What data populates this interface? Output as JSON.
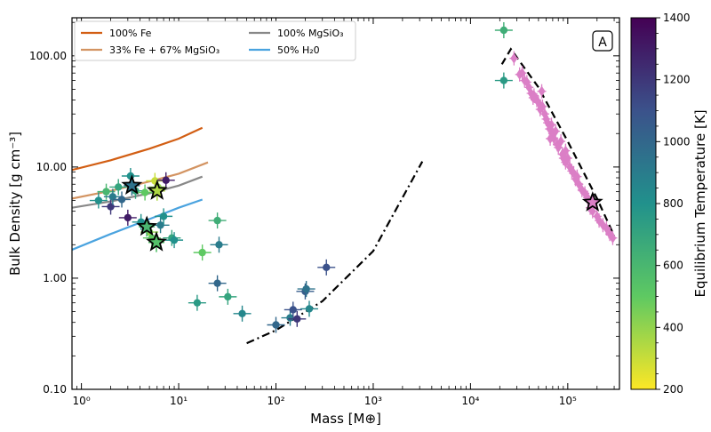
{
  "chart_data": {
    "type": "scatter",
    "title": "",
    "panel_label": "A",
    "xlabel": "Mass [M⊕]",
    "ylabel": "Bulk Density [g cm⁻³]",
    "xscale": "log",
    "yscale": "log",
    "xlim": [
      0.8,
      340000
    ],
    "ylim": [
      0.1,
      220
    ],
    "xticks": [
      {
        "value": 1,
        "label": "10⁰"
      },
      {
        "value": 10,
        "label": "10¹"
      },
      {
        "value": 100,
        "label": "10²"
      },
      {
        "value": 1000,
        "label": "10³"
      },
      {
        "value": 10000,
        "label": "10⁴"
      },
      {
        "value": 100000,
        "label": "10⁵"
      }
    ],
    "yticks": [
      {
        "value": 0.1,
        "label": "0.10"
      },
      {
        "value": 1,
        "label": "1.00"
      },
      {
        "value": 10,
        "label": "10.00"
      },
      {
        "value": 100,
        "label": "100.00"
      }
    ],
    "grid": false,
    "legend": {
      "placement": "top-left",
      "entries": [
        {
          "label": "100% Fe",
          "color": "#d25e13"
        },
        {
          "label": "33% Fe + 67% MgSiO₃",
          "color": "#d39462"
        },
        {
          "label": "100% MgSiO₃",
          "color": "#888888"
        },
        {
          "label": "50% H₂0",
          "color": "#4aa3df"
        }
      ]
    },
    "colorbar": {
      "label": "Equilibrium Temperature [K]",
      "min": 200,
      "max": 1400,
      "ticks": [
        "200",
        "400",
        "600",
        "800",
        "1000",
        "1200",
        "1400"
      ],
      "colormap": "viridis_r"
    },
    "composition_curves": [
      {
        "name": "100% Fe",
        "color": "#d25e13",
        "x": [
          0.8,
          2,
          5,
          10,
          17.5
        ],
        "y": [
          9.4,
          11.5,
          14.6,
          18.0,
          22.5
        ]
      },
      {
        "name": "33% Fe + 67% MgSiO₃",
        "color": "#d39462",
        "x": [
          0.8,
          2,
          5,
          10,
          20
        ],
        "y": [
          5.2,
          6.1,
          7.4,
          8.7,
          11.0
        ]
      },
      {
        "name": "100% MgSiO₃",
        "color": "#888888",
        "x": [
          0.8,
          2,
          5,
          10,
          17.5
        ],
        "y": [
          4.3,
          4.9,
          5.8,
          6.8,
          8.2
        ]
      },
      {
        "name": "50% H₂0",
        "color": "#4aa3df",
        "x": [
          0.8,
          2,
          5,
          10,
          17.5
        ],
        "y": [
          1.8,
          2.5,
          3.4,
          4.3,
          5.1
        ]
      }
    ],
    "model_lines": [
      {
        "style": "dash-dot",
        "color": "#000000",
        "x": [
          50,
          100,
          300,
          1000,
          3200
        ],
        "y": [
          0.26,
          0.34,
          0.62,
          1.75,
          11.2
        ]
      },
      {
        "style": "dashed",
        "color": "#000000",
        "x": [
          21000,
          26000,
          50000,
          100000,
          200000,
          300000
        ],
        "y": [
          84,
          115,
          52,
          17,
          5.2,
          2.4
        ]
      }
    ],
    "planets": [
      {
        "x": 1.5,
        "y": 5.0,
        "t": 800
      },
      {
        "x": 1.8,
        "y": 6.0,
        "t": 600
      },
      {
        "x": 2.0,
        "y": 4.4,
        "t": 1200
      },
      {
        "x": 2.1,
        "y": 5.4,
        "t": 900
      },
      {
        "x": 2.4,
        "y": 6.6,
        "t": 700
      },
      {
        "x": 2.6,
        "y": 5.1,
        "t": 1000
      },
      {
        "x": 3.0,
        "y": 3.5,
        "t": 1300
      },
      {
        "x": 3.2,
        "y": 8.3,
        "t": 800
      },
      {
        "x": 3.6,
        "y": 6.1,
        "t": 700
      },
      {
        "x": 4.1,
        "y": 3.2,
        "t": 800
      },
      {
        "x": 4.5,
        "y": 5.9,
        "t": 500
      },
      {
        "x": 5.0,
        "y": 2.6,
        "t": 400
      },
      {
        "x": 5.3,
        "y": 2.3,
        "t": 500
      },
      {
        "x": 5.7,
        "y": 7.5,
        "t": 300
      },
      {
        "x": 6.1,
        "y": 6.6,
        "t": 400
      },
      {
        "x": 6.5,
        "y": 3.0,
        "t": 900
      },
      {
        "x": 7.0,
        "y": 3.6,
        "t": 800
      },
      {
        "x": 7.4,
        "y": 7.6,
        "t": 1300
      },
      {
        "x": 8.5,
        "y": 2.3,
        "t": 700
      },
      {
        "x": 9.0,
        "y": 2.2,
        "t": 800
      },
      {
        "x": 15.5,
        "y": 0.6,
        "t": 750
      },
      {
        "x": 17.5,
        "y": 1.7,
        "t": 500
      },
      {
        "x": 25.0,
        "y": 3.3,
        "t": 650
      },
      {
        "x": 26.0,
        "y": 2.0,
        "t": 900
      },
      {
        "x": 25.0,
        "y": 0.9,
        "t": 1000
      },
      {
        "x": 32.0,
        "y": 0.68,
        "t": 700
      },
      {
        "x": 45.0,
        "y": 0.48,
        "t": 850
      },
      {
        "x": 100,
        "y": 0.38,
        "t": 1000
      },
      {
        "x": 140,
        "y": 0.44,
        "t": 900
      },
      {
        "x": 150,
        "y": 0.52,
        "t": 1100
      },
      {
        "x": 165,
        "y": 0.43,
        "t": 1200
      },
      {
        "x": 200,
        "y": 0.76,
        "t": 1050
      },
      {
        "x": 205,
        "y": 0.8,
        "t": 950
      },
      {
        "x": 220,
        "y": 0.53,
        "t": 850
      },
      {
        "x": 330,
        "y": 1.25,
        "t": 1100
      },
      {
        "x": 22000,
        "y": 170,
        "t": 650
      },
      {
        "x": 22000,
        "y": 60,
        "t": 750
      }
    ],
    "starred_planets": [
      {
        "x": 3.3,
        "y": 6.8,
        "t": 950
      },
      {
        "x": 6.0,
        "y": 6.1,
        "t": 350
      },
      {
        "x": 4.7,
        "y": 2.9,
        "t": 600
      },
      {
        "x": 5.9,
        "y": 2.1,
        "t": 550
      }
    ],
    "brown_dwarfs": {
      "color": "#db7fc6",
      "points": [
        {
          "x": 28000,
          "y": 95
        },
        {
          "x": 32000,
          "y": 68
        },
        {
          "x": 34000,
          "y": 70
        },
        {
          "x": 38000,
          "y": 58
        },
        {
          "x": 40000,
          "y": 52
        },
        {
          "x": 42000,
          "y": 46
        },
        {
          "x": 45000,
          "y": 44
        },
        {
          "x": 48000,
          "y": 40
        },
        {
          "x": 50000,
          "y": 38
        },
        {
          "x": 52000,
          "y": 33
        },
        {
          "x": 55000,
          "y": 35
        },
        {
          "x": 58000,
          "y": 30
        },
        {
          "x": 60000,
          "y": 27
        },
        {
          "x": 62000,
          "y": 25
        },
        {
          "x": 65000,
          "y": 22
        },
        {
          "x": 68000,
          "y": 24
        },
        {
          "x": 70000,
          "y": 20
        },
        {
          "x": 72000,
          "y": 18
        },
        {
          "x": 75000,
          "y": 21
        },
        {
          "x": 78000,
          "y": 16
        },
        {
          "x": 80000,
          "y": 15
        },
        {
          "x": 85000,
          "y": 17
        },
        {
          "x": 88000,
          "y": 13
        },
        {
          "x": 90000,
          "y": 12
        },
        {
          "x": 95000,
          "y": 11
        },
        {
          "x": 100000,
          "y": 12
        },
        {
          "x": 105000,
          "y": 10
        },
        {
          "x": 110000,
          "y": 9.2
        },
        {
          "x": 115000,
          "y": 8.8
        },
        {
          "x": 120000,
          "y": 7.8
        },
        {
          "x": 125000,
          "y": 8.2
        },
        {
          "x": 130000,
          "y": 7.0
        },
        {
          "x": 140000,
          "y": 6.2
        },
        {
          "x": 150000,
          "y": 5.8
        },
        {
          "x": 160000,
          "y": 5.3
        },
        {
          "x": 170000,
          "y": 4.3
        },
        {
          "x": 180000,
          "y": 4.0
        },
        {
          "x": 200000,
          "y": 3.6
        },
        {
          "x": 210000,
          "y": 3.3
        },
        {
          "x": 230000,
          "y": 3.0
        },
        {
          "x": 250000,
          "y": 2.8
        },
        {
          "x": 270000,
          "y": 2.5
        },
        {
          "x": 290000,
          "y": 2.3
        },
        {
          "x": 54000,
          "y": 48
        },
        {
          "x": 36000,
          "y": 60
        },
        {
          "x": 44000,
          "y": 42
        },
        {
          "x": 66000,
          "y": 18
        },
        {
          "x": 95000,
          "y": 14
        }
      ],
      "starred": {
        "x": 180000,
        "y": 4.8
      }
    }
  }
}
